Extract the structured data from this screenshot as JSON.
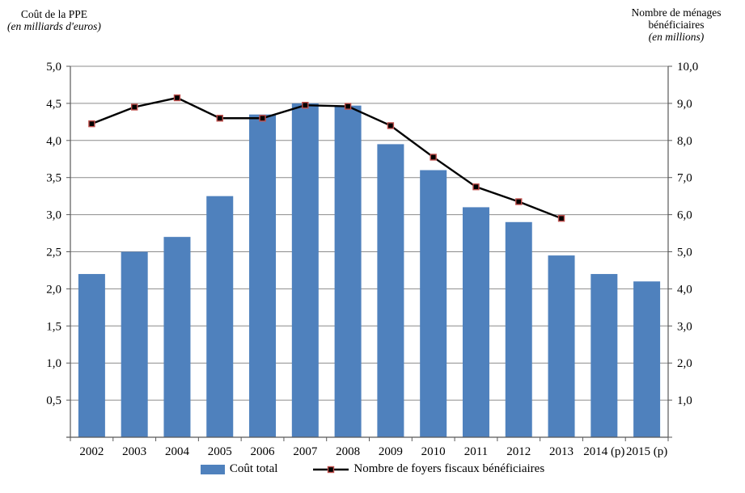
{
  "chart_data": {
    "type": "bar",
    "categories": [
      "2002",
      "2003",
      "2004",
      "2005",
      "2006",
      "2007",
      "2008",
      "2009",
      "2010",
      "2011",
      "2012",
      "2013",
      "2014 (p)",
      "2015 (p)"
    ],
    "series": [
      {
        "name": "Coût total",
        "type": "bar",
        "axis": "left",
        "color": "#4F81BD",
        "values": [
          2.2,
          2.5,
          2.7,
          3.25,
          4.35,
          4.5,
          4.47,
          3.95,
          3.6,
          3.1,
          2.9,
          2.45,
          2.2,
          2.1
        ]
      },
      {
        "name": "Nombre de foyers fiscaux bénéficiaires",
        "type": "line",
        "axis": "right",
        "line_color": "#000000",
        "marker_fill": "#000000",
        "marker_border": "#C0504D",
        "values": [
          8.45,
          8.9,
          9.15,
          8.6,
          8.6,
          8.95,
          8.92,
          8.4,
          7.55,
          6.75,
          6.35,
          5.9,
          null,
          null
        ]
      }
    ],
    "left_axis": {
      "title": "Coût de la PPE",
      "subtitle": "(en milliards d'euros)",
      "min": 0,
      "max": 5,
      "step": 0.5,
      "tick_labels": [
        "5,0",
        "4,5",
        "4,0",
        "3,5",
        "3,0",
        "2,5",
        "2,0",
        "1,5",
        "1,0",
        "0,5"
      ]
    },
    "right_axis": {
      "title_lines": [
        "Nombre de ménages",
        "bénéficiaires"
      ],
      "subtitle": "(en millions)",
      "min": 0,
      "max": 10,
      "step": 1,
      "tick_labels": [
        "10,0",
        "9,0",
        "8,0",
        "7,0",
        "6,0",
        "5,0",
        "4,0",
        "3,0",
        "2,0",
        "1,0"
      ]
    },
    "grid": true,
    "legend_position": "bottom",
    "colors": {
      "grid": "#8C8C8C",
      "axis": "#595959",
      "text": "#000000"
    }
  }
}
